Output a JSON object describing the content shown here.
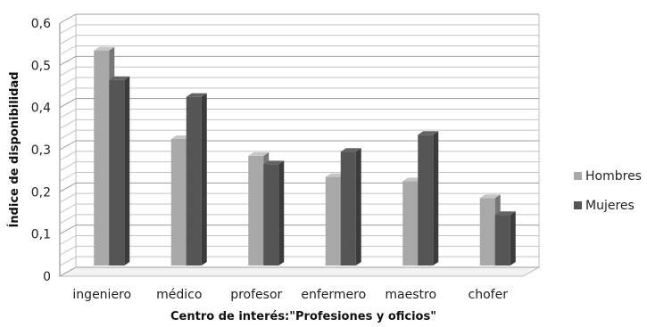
{
  "chart_data": {
    "type": "bar",
    "title": "",
    "xlabel": "Centro de interés:\"Profesiones y oficios\"",
    "ylabel": "Índice de disponibilidad",
    "categories": [
      "ingeniero",
      "médico",
      "profesor",
      "enfermero",
      "maestro",
      "chofer"
    ],
    "series": [
      {
        "name": "Hombres",
        "color": "#a8a8a8",
        "values": [
          0.51,
          0.3,
          0.26,
          0.21,
          0.2,
          0.16
        ]
      },
      {
        "name": "Mujeres",
        "color": "#555555",
        "values": [
          0.44,
          0.4,
          0.24,
          0.27,
          0.31,
          0.12
        ]
      }
    ],
    "ylim": [
      0,
      0.6
    ],
    "yticks": [
      "0",
      "0,1",
      "0,2",
      "0,3",
      "0,4",
      "0,5",
      "0,6"
    ],
    "grid": true,
    "legend_position": "right",
    "style": "3d-clustered-column"
  }
}
